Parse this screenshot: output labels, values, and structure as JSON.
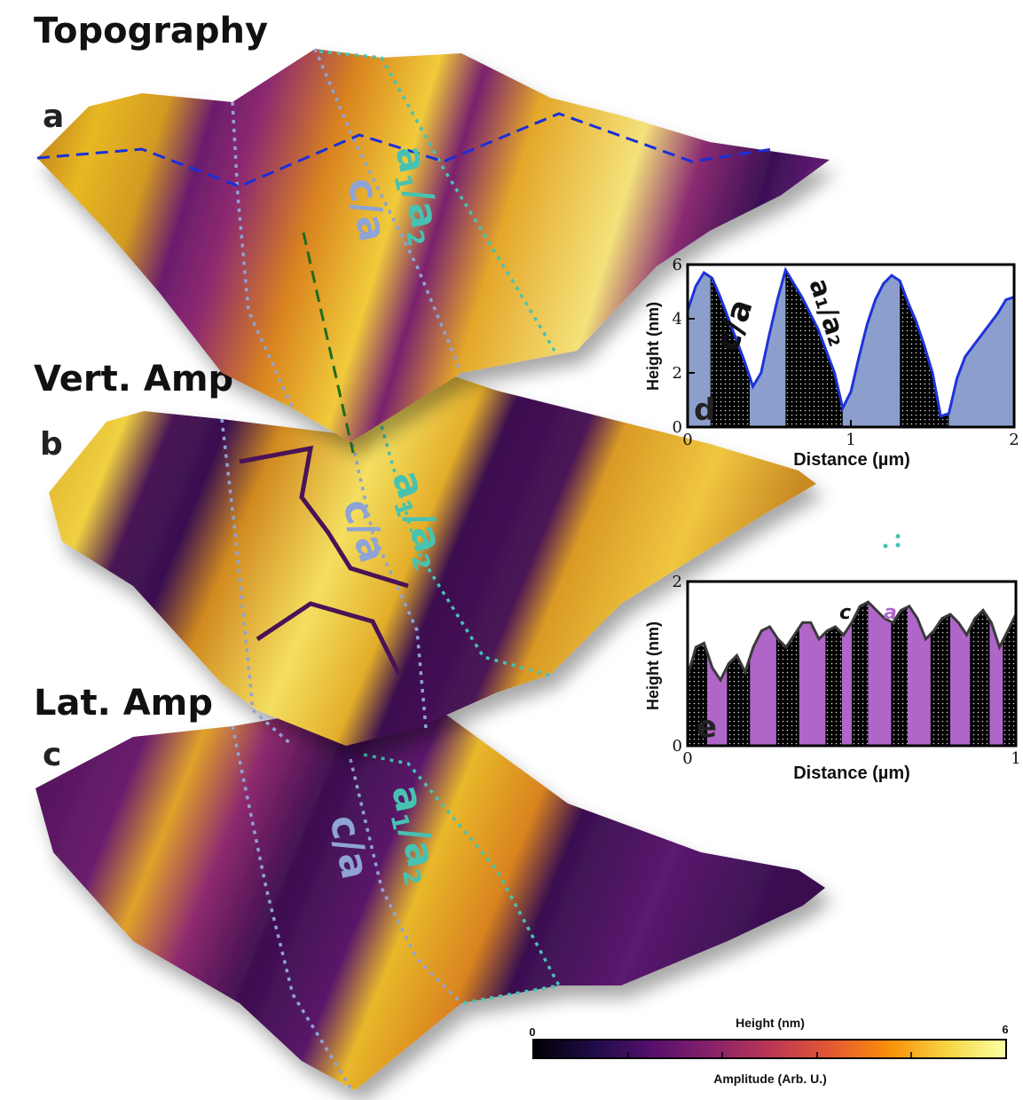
{
  "titles": {
    "topography": "Topography",
    "vert_amp": "Vert. Amp",
    "lat_amp": "Lat. Amp"
  },
  "panel_labels": {
    "a": "a",
    "b": "b",
    "c": "c",
    "d": "d",
    "e": "e"
  },
  "domain_labels": {
    "ca": "c/a",
    "a1a2_a": "a",
    "a1a2_1": "1",
    "a1a2_mid": "/a",
    "a1a2_2": "2"
  },
  "colors": {
    "inferno_dark": "#1a0b3b",
    "purple": "#5b1a6e",
    "magenta": "#8e2a6f",
    "orange": "#d9831f",
    "gold": "#e8b820",
    "yellow": "#f4f09a",
    "ca_label": "#8ea3d6",
    "a1a2_label": "#47c2b1",
    "profile_d_fill": "#8c9fcc",
    "profile_d_line": "#1e33d9",
    "profile_e_fill": "#b066c9",
    "profile_e_line": "#3a3a3a",
    "dashed_blue": "#1a2fd9",
    "dashed_green": "#1f6b1f"
  },
  "colorbar": {
    "top_label": "Height (nm)",
    "bottom_label": "Amplitude (Arb. U.)",
    "min_label": "0",
    "max_label": "6"
  },
  "chart_data": [
    {
      "id": "d",
      "type": "area",
      "xlabel": "Distance (µm)",
      "ylabel": "Height (nm)",
      "xlim": [
        0,
        2
      ],
      "ylim": [
        0,
        6
      ],
      "xticks": [
        "0",
        "1",
        "2"
      ],
      "yticks": [
        "0",
        "2",
        "4",
        "6"
      ],
      "annotations": {
        "ca": "c/a",
        "a1a2": "a₁/a₂"
      },
      "x": [
        0,
        0.05,
        0.1,
        0.15,
        0.2,
        0.25,
        0.3,
        0.35,
        0.4,
        0.45,
        0.5,
        0.55,
        0.6,
        0.65,
        0.7,
        0.75,
        0.8,
        0.85,
        0.9,
        0.95,
        1.0,
        1.05,
        1.1,
        1.15,
        1.2,
        1.25,
        1.3,
        1.35,
        1.4,
        1.45,
        1.5,
        1.55,
        1.6,
        1.65,
        1.7,
        1.75,
        1.8,
        1.85,
        1.9,
        1.95,
        2.0
      ],
      "values": [
        4.3,
        5.2,
        5.7,
        5.5,
        4.8,
        4.0,
        3.2,
        2.4,
        1.5,
        2.0,
        3.4,
        4.7,
        5.8,
        5.3,
        4.8,
        4.2,
        3.6,
        2.8,
        2.0,
        0.7,
        1.3,
        2.6,
        3.8,
        4.7,
        5.3,
        5.6,
        5.4,
        4.6,
        3.9,
        3.0,
        2.0,
        0.4,
        0.5,
        1.8,
        2.6,
        3.0,
        3.4,
        3.8,
        4.2,
        4.7,
        4.8
      ],
      "shaded_bands": [
        [
          0.14,
          0.38
        ],
        [
          0.6,
          0.95
        ],
        [
          1.3,
          1.6
        ]
      ]
    },
    {
      "id": "e",
      "type": "area",
      "xlabel": "Distance (µm)",
      "ylabel": "Height (nm)",
      "xlim": [
        0,
        1
      ],
      "ylim": [
        0,
        2
      ],
      "xticks": [
        "0",
        "1"
      ],
      "yticks": [
        "0",
        "2"
      ],
      "annotations": {
        "c": "c",
        "a": "a"
      },
      "x": [
        0,
        0.025,
        0.05,
        0.075,
        0.1,
        0.125,
        0.15,
        0.175,
        0.2,
        0.225,
        0.25,
        0.275,
        0.3,
        0.325,
        0.35,
        0.375,
        0.4,
        0.425,
        0.45,
        0.475,
        0.5,
        0.525,
        0.55,
        0.575,
        0.6,
        0.625,
        0.65,
        0.675,
        0.7,
        0.725,
        0.75,
        0.775,
        0.8,
        0.825,
        0.85,
        0.875,
        0.9,
        0.925,
        0.95,
        0.975,
        1.0
      ],
      "values": [
        0.85,
        1.2,
        1.25,
        0.95,
        0.8,
        1.0,
        1.1,
        0.9,
        1.2,
        1.4,
        1.45,
        1.3,
        1.2,
        1.35,
        1.5,
        1.5,
        1.3,
        1.4,
        1.45,
        1.35,
        1.5,
        1.7,
        1.75,
        1.65,
        1.55,
        1.5,
        1.65,
        1.7,
        1.55,
        1.3,
        1.4,
        1.55,
        1.6,
        1.5,
        1.35,
        1.55,
        1.65,
        1.5,
        1.2,
        1.4,
        1.6
      ],
      "shaded_bands": [
        [
          0.0,
          0.06
        ],
        [
          0.12,
          0.19
        ],
        [
          0.27,
          0.34
        ],
        [
          0.42,
          0.47
        ],
        [
          0.5,
          0.55
        ],
        [
          0.62,
          0.67
        ],
        [
          0.74,
          0.8
        ],
        [
          0.86,
          0.92
        ],
        [
          0.96,
          1.0
        ]
      ]
    }
  ]
}
